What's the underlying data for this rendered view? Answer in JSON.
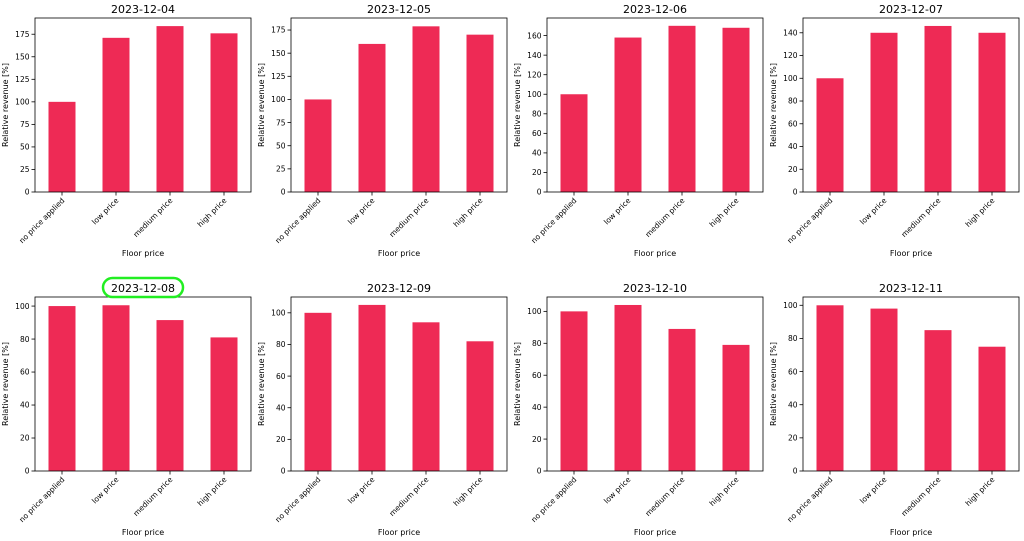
{
  "colors": {
    "bar": "#ee2a55",
    "highlight": "#22ee22"
  },
  "chart_data": [
    {
      "type": "bar",
      "title": "2023-12-04",
      "xlabel": "Floor price",
      "ylabel": "Relative revenue [%]",
      "categories": [
        "no price applied",
        "low price",
        "medium price",
        "high price"
      ],
      "values": [
        100,
        171,
        184,
        176
      ],
      "ylim": [
        0,
        193
      ],
      "yticks": [
        0,
        25,
        50,
        75,
        100,
        125,
        150,
        175
      ],
      "grid": false,
      "highlighted": false
    },
    {
      "type": "bar",
      "title": "2023-12-05",
      "xlabel": "Floor price",
      "ylabel": "Relative revenue [%]",
      "categories": [
        "no price applied",
        "low price",
        "medium price",
        "high price"
      ],
      "values": [
        100,
        160,
        179,
        170
      ],
      "ylim": [
        0,
        188
      ],
      "yticks": [
        0,
        25,
        50,
        75,
        100,
        125,
        150,
        175
      ],
      "grid": false,
      "highlighted": false
    },
    {
      "type": "bar",
      "title": "2023-12-06",
      "xlabel": "Floor price",
      "ylabel": "Relative revenue [%]",
      "categories": [
        "no price applied",
        "low price",
        "medium price",
        "high price"
      ],
      "values": [
        100,
        158,
        170,
        168
      ],
      "ylim": [
        0,
        178
      ],
      "yticks": [
        0,
        20,
        40,
        60,
        80,
        100,
        120,
        140,
        160
      ],
      "grid": false,
      "highlighted": false
    },
    {
      "type": "bar",
      "title": "2023-12-07",
      "xlabel": "Floor price",
      "ylabel": "Relative revenue [%]",
      "categories": [
        "no price applied",
        "low price",
        "medium price",
        "high price"
      ],
      "values": [
        100,
        140,
        146,
        140
      ],
      "ylim": [
        0,
        153
      ],
      "yticks": [
        0,
        20,
        40,
        60,
        80,
        100,
        120,
        140
      ],
      "grid": false,
      "highlighted": false
    },
    {
      "type": "bar",
      "title": "2023-12-08",
      "xlabel": "Floor price",
      "ylabel": "Relative revenue [%]",
      "categories": [
        "no price applied",
        "low price",
        "medium price",
        "high price"
      ],
      "values": [
        100,
        100.5,
        91.5,
        81
      ],
      "ylim": [
        0,
        105.5
      ],
      "yticks": [
        0,
        20,
        40,
        60,
        80,
        100
      ],
      "grid": false,
      "highlighted": true
    },
    {
      "type": "bar",
      "title": "2023-12-09",
      "xlabel": "Floor price",
      "ylabel": "Relative revenue [%]",
      "categories": [
        "no price applied",
        "low price",
        "medium price",
        "high price"
      ],
      "values": [
        100,
        105,
        94,
        82
      ],
      "ylim": [
        0,
        110
      ],
      "yticks": [
        0,
        20,
        40,
        60,
        80,
        100
      ],
      "grid": false,
      "highlighted": false
    },
    {
      "type": "bar",
      "title": "2023-12-10",
      "xlabel": "Floor price",
      "ylabel": "Relative revenue [%]",
      "categories": [
        "no price applied",
        "low price",
        "medium price",
        "high price"
      ],
      "values": [
        100,
        104,
        89,
        79
      ],
      "ylim": [
        0,
        109
      ],
      "yticks": [
        0,
        20,
        40,
        60,
        80,
        100
      ],
      "grid": false,
      "highlighted": false
    },
    {
      "type": "bar",
      "title": "2023-12-11",
      "xlabel": "Floor price",
      "ylabel": "Relative revenue [%]",
      "categories": [
        "no price applied",
        "low price",
        "medium price",
        "high price"
      ],
      "values": [
        100,
        98,
        85,
        75
      ],
      "ylim": [
        0,
        105
      ],
      "yticks": [
        0,
        20,
        40,
        60,
        80,
        100
      ],
      "grid": false,
      "highlighted": false
    }
  ]
}
